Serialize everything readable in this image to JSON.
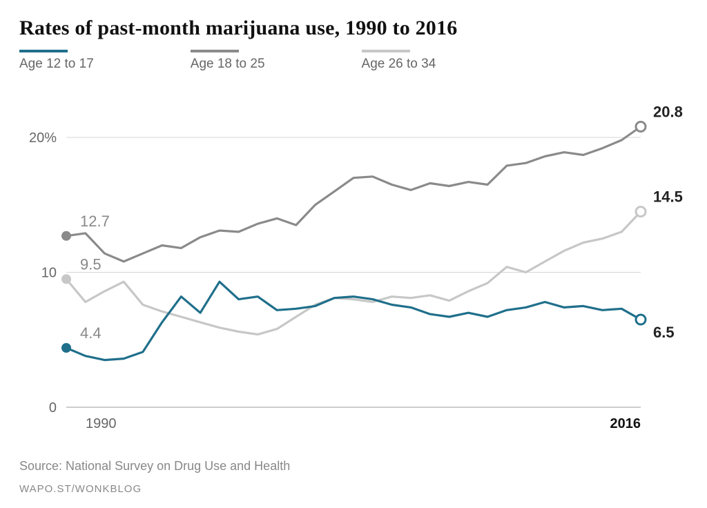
{
  "title": "Rates of past-month marijuana use, 1990 to 2016",
  "source": "Source: National Survey on Drug Use and Health",
  "credit": "WAPO.ST/WONKBLOG",
  "legend": {
    "s1": "Age 12 to 17",
    "s2": "Age 18 to 25",
    "s3": "Age 26 to 34"
  },
  "chart": {
    "type": "line",
    "background_color": "#ffffff",
    "grid_color": "#d6d6d6",
    "axis_color": "#bbbbbb",
    "tick_fontsize": 20,
    "tick_color": "#666666",
    "label_fontsize": 22,
    "endpoint_label_fontsize": 22,
    "endpoint_label_weight": "700",
    "start_label_fontsize": 22,
    "start_label_color": "#888888",
    "line_width": 3.2,
    "marker_radius": 7,
    "marker_stroke": 3,
    "ylim": [
      0,
      22
    ],
    "yticks": [
      0,
      10,
      20
    ],
    "ytick_labels": [
      "0",
      "10",
      "20%"
    ],
    "xlim": [
      1990,
      2016
    ],
    "xticks": [
      1990,
      2016
    ],
    "xtick_labels": [
      "1990",
      "2016"
    ],
    "xtick_end_weight": "700",
    "series": [
      {
        "id": "s2",
        "label": "Age 18 to 25",
        "color": "#8a8a8a",
        "start_value": 12.7,
        "end_value": 20.8,
        "start_marker_fill": "#8a8a8a",
        "end_marker_fill": "#ffffff",
        "y": [
          12.7,
          12.9,
          11.4,
          10.8,
          11.4,
          12.0,
          11.8,
          12.6,
          13.1,
          13.0,
          13.6,
          14.0,
          13.5,
          15.0,
          16.0,
          17.0,
          17.1,
          16.5,
          16.1,
          16.6,
          16.4,
          16.7,
          16.5,
          17.9,
          18.1,
          18.6,
          18.9,
          18.7,
          19.2,
          19.8,
          20.8
        ],
        "end_label_dy": -14
      },
      {
        "id": "s3",
        "label": "Age 26 to 34",
        "color": "#c7c7c7",
        "start_value": 9.5,
        "end_value": 14.5,
        "start_marker_fill": "#c7c7c7",
        "end_marker_fill": "#ffffff",
        "y": [
          9.5,
          7.8,
          8.6,
          9.3,
          7.6,
          7.1,
          6.7,
          6.3,
          5.9,
          5.6,
          5.4,
          5.8,
          6.7,
          7.6,
          8.1,
          8.0,
          7.8,
          8.2,
          8.1,
          8.3,
          7.9,
          8.6,
          9.2,
          10.4,
          10.0,
          10.8,
          11.6,
          12.2,
          12.5,
          13.0,
          14.5
        ],
        "end_label_dy": -14
      },
      {
        "id": "s1",
        "label": "Age 12 to 17",
        "color": "#1f6f8b",
        "start_value": 4.4,
        "end_value": 6.5,
        "start_marker_fill": "#1f6f8b",
        "end_marker_fill": "#ffffff",
        "y": [
          4.4,
          3.8,
          3.5,
          3.6,
          4.1,
          6.3,
          8.2,
          7.0,
          9.3,
          8.0,
          8.2,
          7.2,
          7.3,
          7.5,
          8.1,
          8.2,
          8.0,
          7.6,
          7.4,
          6.9,
          6.7,
          7.0,
          6.7,
          7.2,
          7.4,
          7.8,
          7.4,
          7.5,
          7.2,
          7.3,
          6.5
        ],
        "end_label_dy": 26
      }
    ]
  }
}
